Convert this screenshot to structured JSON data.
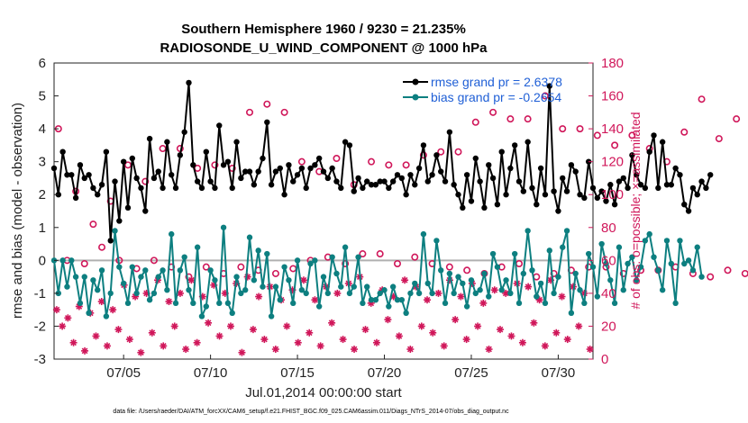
{
  "chart_data": {
    "type": "line",
    "title": "Southern Hemisphere 1960 / 9230 = 21.235%",
    "subtitle": "RADIOSONDE_U_WIND_COMPONENT @ 1000 hPa",
    "xlabel": "Jul.01,2014 00:00:00 start",
    "ylabel_left": "rmse and bias (model - observation)",
    "ylabel_right": "# of obs: o=possible; ×=assimilated",
    "ylim_left": [
      -3,
      6
    ],
    "ylim_right": [
      0,
      180
    ],
    "yticks_left": [
      "-3",
      "-2",
      "-1",
      "0",
      "1",
      "2",
      "3",
      "4",
      "5",
      "6"
    ],
    "yticks_right": [
      "0",
      "20",
      "40",
      "60",
      "80",
      "100",
      "120",
      "140",
      "160",
      "180"
    ],
    "xlim": [
      1,
      32
    ],
    "xticks": [
      {
        "x": 5,
        "label": "07/05"
      },
      {
        "x": 10,
        "label": "07/10"
      },
      {
        "x": 15,
        "label": "07/15"
      },
      {
        "x": 20,
        "label": "07/20"
      },
      {
        "x": 25,
        "label": "07/25"
      },
      {
        "x": 30,
        "label": "07/30"
      }
    ],
    "x_start": 1,
    "x_step": 0.25,
    "colors": {
      "rmse": "#000000",
      "bias": "#0d7f80",
      "possible": "#d0175a",
      "assimilated": "#d0175a",
      "legend_text": "#1f5fd6",
      "zero_line": "#b0b0b0"
    },
    "legend_placement": "top-right",
    "series": [
      {
        "name": "rmse grand pr = 2.6378",
        "axis": "left",
        "values": [
          2.8,
          2.0,
          3.3,
          2.6,
          2.6,
          1.9,
          2.9,
          2.5,
          2.6,
          2.2,
          2.0,
          2.3,
          3.3,
          0.6,
          2.4,
          1.2,
          3.0,
          1.6,
          3.1,
          2.5,
          2.2,
          1.5,
          3.7,
          2.5,
          2.7,
          2.2,
          3.6,
          2.6,
          2.2,
          3.2,
          3.9,
          5.4,
          2.9,
          2.4,
          2.2,
          3.3,
          2.4,
          2.2,
          4.1,
          2.9,
          3.0,
          2.2,
          3.6,
          2.5,
          2.7,
          2.7,
          2.3,
          2.7,
          3.1,
          4.2,
          2.3,
          2.7,
          2.8,
          2.0,
          2.9,
          2.4,
          2.6,
          2.8,
          2.2,
          2.8,
          2.9,
          3.1,
          2.7,
          2.5,
          2.8,
          2.4,
          2.2,
          3.6,
          3.5,
          2.1,
          2.5,
          2.2,
          2.4,
          2.3,
          2.3,
          2.4,
          2.4,
          2.2,
          2.4,
          2.6,
          2.5,
          2.0,
          2.6,
          2.3,
          2.8,
          3.5,
          2.4,
          2.6,
          3.2,
          2.7,
          2.4,
          3.9,
          2.3,
          2.0,
          1.6,
          2.6,
          1.8,
          3.1,
          2.4,
          1.6,
          2.9,
          2.5,
          1.7,
          3.3,
          2.0,
          2.8,
          3.5,
          2.4,
          2.1,
          3.6,
          2.2,
          1.7,
          2.8,
          2.0,
          5.3,
          2.1,
          1.5,
          2.5,
          2.1,
          2.9,
          2.7,
          2.0,
          1.9,
          3.0,
          2.2,
          1.9,
          2.1,
          1.8,
          2.3,
          1.7,
          2.4,
          2.5,
          2.2,
          3.2,
          2.6,
          2.3,
          2.2,
          3.3,
          3.8,
          2.2,
          3.6,
          2.3,
          2.3,
          2.8,
          2.6,
          1.7,
          1.5,
          2.2,
          2.0,
          2.4,
          2.2,
          2.6
        ]
      },
      {
        "name": "bias grand pr = -0.2654",
        "axis": "left",
        "values": [
          0.0,
          -1.0,
          0.0,
          -0.8,
          0.0,
          -0.5,
          -1.3,
          -0.5,
          -1.6,
          -0.6,
          -0.9,
          -0.3,
          -1.7,
          -1.0,
          0.9,
          -0.2,
          -0.7,
          -1.3,
          -0.2,
          -1.0,
          -0.5,
          -0.3,
          -1.2,
          -1.0,
          -0.5,
          -0.3,
          -0.9,
          0.8,
          -1.3,
          -0.3,
          0.1,
          -0.9,
          -1.3,
          0.4,
          -1.7,
          -1.4,
          -0.3,
          -0.6,
          -1.3,
          1.0,
          -1.3,
          -1.6,
          -0.5,
          -1.0,
          -0.9,
          0.7,
          -0.6,
          0.3,
          -0.8,
          0.2,
          -1.7,
          -0.8,
          -1.2,
          -0.2,
          -0.6,
          -1.3,
          0.0,
          -0.9,
          -1.0,
          -0.1,
          0.0,
          -1.4,
          -0.5,
          -1.0,
          0.1,
          -0.4,
          -0.8,
          0.4,
          -1.0,
          -0.8,
          0.1,
          -1.3,
          -0.8,
          -1.2,
          -1.2,
          -1.0,
          -0.9,
          -1.4,
          -0.8,
          -1.2,
          -1.2,
          -1.6,
          -1.0,
          -0.7,
          -1.0,
          0.8,
          -0.7,
          -1.0,
          0.6,
          -0.3,
          -1.3,
          -0.4,
          -1.0,
          -0.5,
          -0.7,
          -1.4,
          -0.6,
          -1.0,
          -0.9,
          -0.4,
          -1.1,
          0.2,
          -0.2,
          -0.9,
          -0.6,
          -1.0,
          0.2,
          -1.3,
          -0.4,
          0.9,
          -0.3,
          -1.1,
          -0.7,
          -1.3,
          0.3,
          -1.0,
          -0.5,
          0.4,
          0.9,
          -1.6,
          -0.4,
          -0.9,
          -1.3,
          0.2,
          -0.2,
          -1.1,
          0.5,
          -0.1,
          -0.6,
          -1.3,
          0.4,
          -0.9,
          -0.1,
          0.1,
          -0.6,
          -0.2,
          0.6,
          0.8,
          0.1,
          -0.3,
          -0.9,
          0.6,
          -0.1,
          -1.3,
          0.6,
          -0.1,
          0.0,
          -0.3,
          0.4,
          -0.5
        ]
      },
      {
        "name": "possible",
        "axis": "right",
        "marker": "o",
        "values": [
          140,
          60,
          102,
          58,
          82,
          68,
          96,
          60,
          118,
          55,
          108,
          60,
          128,
          56,
          128,
          50,
          116,
          56,
          118,
          52,
          116,
          56,
          150,
          54,
          155,
          52,
          150,
          55,
          120,
          60,
          114,
          62,
          122,
          58,
          106,
          64,
          120,
          64,
          118,
          58,
          118,
          62,
          124,
          58,
          126,
          56,
          126,
          54,
          144,
          52,
          150,
          56,
          146,
          58,
          146,
          50,
          160,
          52,
          140,
          54,
          140,
          56,
          136,
          56,
          130,
          52,
          136,
          54,
          128,
          54,
          120,
          56,
          138,
          52,
          158,
          50,
          134,
          54,
          146,
          52,
          130,
          54,
          116,
          58,
          112,
          60,
          118,
          52,
          126,
          54,
          142,
          56,
          98,
          60,
          122,
          58,
          104,
          62
        ]
      },
      {
        "name": "assimilated",
        "axis": "right",
        "marker": "x",
        "values": [
          30,
          20,
          25,
          10,
          32,
          5,
          28,
          14,
          35,
          8,
          30,
          18,
          45,
          12,
          38,
          4,
          40,
          16,
          48,
          8,
          35,
          20,
          40,
          6,
          48,
          10,
          38,
          22,
          45,
          14,
          40,
          20,
          46,
          4,
          50,
          18,
          38,
          12,
          44,
          6,
          36,
          20,
          42,
          10,
          48,
          16,
          36,
          8,
          44,
          22,
          40,
          12,
          46,
          6,
          50,
          18,
          34,
          10,
          42,
          24,
          38,
          14,
          48,
          6,
          44,
          20,
          36,
          16,
          40,
          8,
          48,
          24,
          38,
          12,
          46,
          20,
          34,
          6,
          42,
          18,
          40,
          14,
          46,
          10,
          44,
          22,
          36,
          8,
          48,
          16,
          38,
          12,
          44,
          20,
          40,
          6
        ]
      }
    ]
  },
  "footer": "data file: /Users/raeder/DAI/ATM_forcXX/CAM6_setup/f.e21.FHIST_BGC.f09_025.CAM6assim.011/Diags_NTrS_2014-07/obs_diag_output.nc"
}
